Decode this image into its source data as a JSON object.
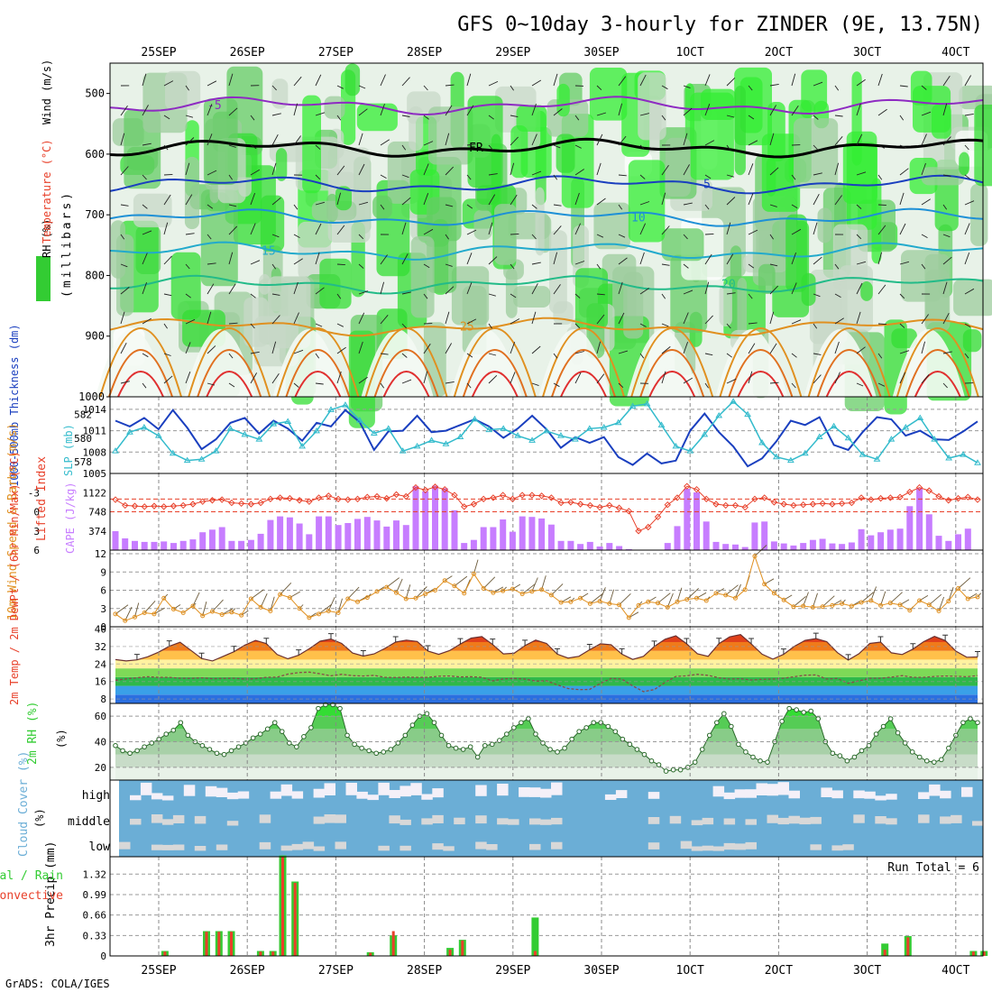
{
  "title": "GFS 0~10day 3-hourly for ZINDER (9E, 13.75N)",
  "footer": "GrADS: COLA/IGES",
  "dates": [
    "25SEP",
    "26SEP",
    "27SEP",
    "28SEP",
    "29SEP",
    "30SEP",
    "1OCT",
    "2OCT",
    "3OCT",
    "4OCT"
  ],
  "colors": {
    "grid": "#888888",
    "axis": "#000000",
    "rh_green": "#33cc33",
    "cloud_blue": "#6baed6",
    "cape": "#c77dff",
    "precip_total": "#33cc33",
    "precip_conv": "#e8402a",
    "slp": "#1a3fbf",
    "thickness": "#33bbcc"
  },
  "chart_data": [
    {
      "type": "area",
      "panel": "upper-air",
      "title": "RH (%) / Temperature (°C) / Wind (m/s)",
      "ylabels": [
        "RH (%)",
        "Temperature (°C)",
        "Wind (m/s)"
      ],
      "yaxis_title": "(millibars)",
      "ylim": [
        1000,
        450
      ],
      "yticks": [
        500,
        600,
        700,
        800,
        900,
        1000
      ],
      "isotherms": [
        {
          "value": -5,
          "label": "-5",
          "pressure": 520,
          "color": "#8e2bc2"
        },
        {
          "value": 0,
          "label": "FR",
          "pressure": 590,
          "color": "#000000"
        },
        {
          "value": 5,
          "label": "5",
          "pressure": 650,
          "color": "#1a3fbf"
        },
        {
          "value": 10,
          "label": "10",
          "pressure": 705,
          "color": "#1e90d6"
        },
        {
          "value": 15,
          "label": "15",
          "pressure": 760,
          "color": "#22aacc"
        },
        {
          "value": 20,
          "label": "20",
          "pressure": 815,
          "color": "#22bb88"
        },
        {
          "value": 25,
          "label": "25",
          "pressure": 885,
          "color": "#e09020"
        }
      ]
    },
    {
      "type": "line",
      "panel": "slp-thickness",
      "ylabel_left": "1000-500mb Thickness (dm)",
      "ylabel_right": "SLP (mb)",
      "left_ticks": [
        578,
        580,
        582
      ],
      "right_ticks": [
        1005,
        1008,
        1011,
        1014
      ],
      "left_lim": [
        577,
        583.5
      ],
      "right_lim": [
        1005,
        1015
      ],
      "series": [
        {
          "name": "SLP",
          "axis": "right",
          "values": [
            1012.4,
            1011.6,
            1012.8,
            1011.2,
            1013.9,
            1011.4,
            1008.4,
            1009.8,
            1012.1,
            1012.8,
            1010.6,
            1012.4,
            1011.3,
            1009.6,
            1012.1,
            1011.6,
            1013.9,
            1012.2,
            1008.3,
            1010.9,
            1011.0,
            1013.1,
            1010.8,
            1011.0,
            1011.8,
            1012.6,
            1011.6,
            1010.0,
            1011.3,
            1013.1,
            1011.2,
            1008.6,
            1010.1,
            1009.3,
            1010.1,
            1007.3,
            1006.2,
            1007.8,
            1006.4,
            1006.8,
            1011.0,
            1013.4,
            1010.8,
            1008.8,
            1006.0,
            1007.1,
            1009.5,
            1012.4,
            1011.8,
            1012.9,
            1009.0,
            1008.3,
            1010.8,
            1012.9,
            1012.6,
            1010.3,
            1011.0,
            1009.8,
            1009.7,
            1010.9,
            1012.3
          ]
        },
        {
          "name": "Thickness",
          "axis": "left",
          "values": [
            578.9,
            580.5,
            580.9,
            580.2,
            578.7,
            578.1,
            578.2,
            578.9,
            580.8,
            580.3,
            579.9,
            581.2,
            581.4,
            579.3,
            580.6,
            582.4,
            582.8,
            581.5,
            580.4,
            580.8,
            578.9,
            579.3,
            579.8,
            579.5,
            580.1,
            581.6,
            580.7,
            580.8,
            580.2,
            579.8,
            580.6,
            580.2,
            579.9,
            580.8,
            580.9,
            581.3,
            582.7,
            582.9,
            581.1,
            579.3,
            578.9,
            580.3,
            581.9,
            583.1,
            582.0,
            579.6,
            578.4,
            578.1,
            578.7,
            580.1,
            581.0,
            580.0,
            578.6,
            578.2,
            579.9,
            580.9,
            581.7,
            579.9,
            578.3,
            578.6,
            577.9
          ]
        }
      ]
    },
    {
      "type": "bar",
      "panel": "cape-lifted-index",
      "ylabel_left": "Lifted Index",
      "ylabel_right": "CAPE (J/kg)",
      "li_ticks": [
        -3,
        0,
        3,
        6
      ],
      "li_lim": [
        6,
        -6
      ],
      "cape_ticks": [
        374,
        748,
        1122
      ],
      "cape_lim": [
        0,
        1500
      ],
      "cape_values": [
        370,
        230,
        180,
        160,
        160,
        170,
        140,
        180,
        210,
        350,
        400,
        450,
        180,
        180,
        200,
        320,
        590,
        660,
        640,
        520,
        310,
        660,
        660,
        490,
        530,
        610,
        650,
        580,
        460,
        580,
        490,
        1250,
        1150,
        1260,
        1210,
        780,
        140,
        200,
        450,
        450,
        600,
        360,
        660,
        650,
        620,
        500,
        180,
        180,
        120,
        160,
        70,
        140,
        80,
        20,
        0,
        0,
        0,
        140,
        470,
        1200,
        1130,
        560,
        160,
        120,
        110,
        60,
        540,
        560,
        170,
        130,
        90,
        140,
        200,
        220,
        130,
        120,
        150,
        410,
        290,
        350,
        400,
        420,
        860,
        1210,
        700,
        280,
        180,
        310,
        420,
        0
      ],
      "li_values": [
        -1.9,
        -1.0,
        -0.9,
        -0.8,
        -0.9,
        -0.8,
        -0.9,
        -1.0,
        -1.2,
        -1.6,
        -1.8,
        -1.9,
        -1.4,
        -1.3,
        -1.2,
        -1.4,
        -2.0,
        -2.2,
        -2.1,
        -1.8,
        -1.6,
        -2.2,
        -2.5,
        -2.0,
        -1.9,
        -2.0,
        -2.3,
        -2.4,
        -2.1,
        -2.7,
        -2.4,
        -3.8,
        -3.4,
        -3.9,
        -3.5,
        -2.6,
        -0.8,
        -1.2,
        -2.0,
        -2.2,
        -2.6,
        -2.0,
        -2.6,
        -2.6,
        -2.5,
        -2.2,
        -1.4,
        -1.5,
        -1.2,
        -1.0,
        -0.7,
        -1.0,
        -0.6,
        -0.1,
        3.0,
        2.4,
        0.8,
        -1.1,
        -2.2,
        -4.0,
        -3.5,
        -2.0,
        -1.2,
        -1.0,
        -1.0,
        -0.7,
        -2.0,
        -2.2,
        -1.5,
        -1.2,
        -1.0,
        -1.1,
        -1.2,
        -1.3,
        -1.2,
        -1.3,
        -1.4,
        -2.2,
        -1.9,
        -2.1,
        -2.2,
        -2.3,
        -3.1,
        -3.8,
        -3.3,
        -2.4,
        -1.8,
        -2.1,
        -2.3,
        -1.9
      ]
    },
    {
      "type": "line",
      "panel": "10m-wind",
      "ylabel": "10m Wind Speed & Barbs (m/s)",
      "yticks": [
        0,
        3,
        6,
        9,
        12
      ],
      "ylim": [
        0,
        12
      ],
      "series": [
        {
          "name": "Speed",
          "values": [
            2.1,
            1.0,
            1.6,
            2.3,
            2.1,
            4.7,
            2.9,
            2.3,
            3.4,
            1.8,
            2.5,
            2.0,
            2.4,
            1.9,
            4.6,
            3.2,
            2.6,
            5.3,
            4.8,
            3.0,
            1.5,
            2.1,
            2.6,
            2.3,
            4.6,
            4.1,
            4.8,
            5.8,
            6.5,
            5.6,
            4.6,
            4.7,
            5.4,
            6.0,
            7.6,
            6.7,
            5.5,
            8.7,
            6.3,
            5.6,
            5.9,
            6.2,
            5.4,
            5.8,
            6.1,
            5.2,
            4.0,
            4.1,
            4.7,
            3.8,
            4.2,
            3.8,
            3.6,
            1.5,
            3.5,
            4.1,
            3.9,
            3.2,
            4.1,
            4.5,
            4.7,
            4.3,
            5.5,
            5.2,
            4.7,
            6.1,
            11.6,
            7.0,
            5.5,
            4.4,
            3.3,
            3.4,
            3.2,
            3.3,
            3.5,
            3.8,
            3.4,
            4.0,
            4.3,
            3.5,
            3.9,
            3.6,
            2.7,
            4.3,
            3.6,
            2.6,
            4.2,
            6.3,
            4.6,
            4.9
          ]
        }
      ]
    },
    {
      "type": "area",
      "panel": "2m-temperature",
      "ylabel": "2m Temp / 2m DewPt / (6hr Min/Max) (°C)",
      "yticks": [
        8,
        16,
        24,
        32,
        40
      ],
      "ylim": [
        6,
        41
      ],
      "series": [
        {
          "name": "Temp",
          "values": [
            26.0,
            25.4,
            25.9,
            27.3,
            29.4,
            32.1,
            33.9,
            30.2,
            26.5,
            25.4,
            27.5,
            29.6,
            32.6,
            34.8,
            33.3,
            28.3,
            26.4,
            28.0,
            31.0,
            34.4,
            35.4,
            33.4,
            29.0,
            27.6,
            28.6,
            31.1,
            34.0,
            34.9,
            34.3,
            29.9,
            28.4,
            30.1,
            33.1,
            35.8,
            36.5,
            32.9,
            28.6,
            28.9,
            32.4,
            34.9,
            33.4,
            28.5,
            26.7,
            27.5,
            30.5,
            33.2,
            32.8,
            28.5,
            26.1,
            27.5,
            32.0,
            35.3,
            36.9,
            33.2,
            28.7,
            27.5,
            33.3,
            36.4,
            37.4,
            33.2,
            28.5,
            26.2,
            28.4,
            32.1,
            34.8,
            35.6,
            34.2,
            29.2,
            25.8,
            28.7,
            33.4,
            34.0,
            29.1,
            28.3,
            30.8,
            34.2,
            36.6,
            34.7,
            29.8,
            27.1,
            27.2
          ]
        },
        {
          "name": "DewPt",
          "values": [
            16.6,
            17.2,
            17.7,
            18.2,
            17.9,
            17.9,
            17.5,
            17.4,
            17.7,
            17.3,
            17.4,
            17.5,
            17.1,
            17.3,
            17.9,
            18.0,
            19.4,
            20.1,
            20.3,
            19.5,
            18.6,
            19.3,
            18.7,
            18.5,
            18.8,
            17.9,
            17.8,
            18.0,
            17.9,
            17.9,
            18.4,
            18.5,
            18.1,
            18.2,
            17.9,
            16.3,
            17.2,
            17.4,
            17.1,
            16.2,
            16.3,
            14.5,
            12.8,
            12.3,
            12.4,
            15.2,
            17.4,
            17.1,
            14.0,
            11.4,
            12.3,
            15.6,
            18.3,
            18.6,
            19.3,
            18.8,
            17.7,
            17.1,
            17.3,
            16.7,
            17.0,
            17.1,
            17.5,
            18.2,
            18.9,
            19.0,
            17.1,
            17.4,
            15.2,
            16.3,
            17.5,
            17.5,
            18.0,
            18.7,
            17.9,
            17.9,
            18.3,
            18.5,
            18.4,
            18.2,
            18.7
          ]
        }
      ]
    },
    {
      "type": "area",
      "panel": "2m-rh",
      "ylabel": "2m RH (%)",
      "yticks": [
        20,
        40,
        60
      ],
      "ylim": [
        10,
        70
      ],
      "series": [
        {
          "name": "RH",
          "values": [
            37,
            33,
            31,
            33,
            36,
            39,
            42,
            46,
            49,
            55,
            45,
            40,
            37,
            34,
            31,
            30,
            33,
            36,
            39,
            43,
            46,
            50,
            55,
            48,
            39,
            36,
            44,
            51,
            66,
            69,
            69,
            66,
            45,
            38,
            35,
            33,
            31,
            32,
            34,
            39,
            45,
            53,
            60,
            62,
            55,
            45,
            37,
            35,
            34,
            36,
            28,
            37,
            38,
            41,
            46,
            51,
            55,
            58,
            46,
            39,
            34,
            32,
            35,
            42,
            48,
            51,
            55,
            55,
            52,
            48,
            42,
            38,
            34,
            30,
            25,
            22,
            17,
            18,
            18,
            20,
            24,
            34,
            45,
            55,
            62,
            52,
            38,
            32,
            28,
            25,
            24,
            40,
            56,
            66,
            65,
            63,
            64,
            58,
            40,
            31,
            29,
            25,
            28,
            33,
            37,
            46,
            52,
            58,
            47,
            39,
            32,
            28,
            25,
            24,
            26,
            35,
            45,
            55,
            58,
            55
          ]
        }
      ]
    },
    {
      "type": "heatmap",
      "panel": "cloud-cover",
      "ylabel": "Cloud Cover (%)",
      "rows": [
        "high",
        "middle",
        "low"
      ]
    },
    {
      "type": "bar",
      "panel": "precip",
      "ylabel": "3hr Precip (mm)",
      "legend": [
        "Total / Rain",
        "Convective"
      ],
      "annotation": "Run Total = 6",
      "yticks": [
        "0",
        "0.33",
        "0.66",
        "0.99",
        "1.32"
      ],
      "ylim": [
        0,
        1.6
      ],
      "bars": [
        {
          "x": 0.57,
          "total": 0.08,
          "conv": 0.07
        },
        {
          "x": 1.04,
          "total": 0.4,
          "conv": 0.39
        },
        {
          "x": 1.18,
          "total": 0.4,
          "conv": 0.39
        },
        {
          "x": 1.32,
          "total": 0.4,
          "conv": 0.39
        },
        {
          "x": 1.65,
          "total": 0.08,
          "conv": 0.07
        },
        {
          "x": 1.79,
          "total": 0.08,
          "conv": 0.07
        },
        {
          "x": 1.9,
          "total": 1.62,
          "conv": 1.6
        },
        {
          "x": 2.04,
          "total": 1.2,
          "conv": 1.18
        },
        {
          "x": 2.89,
          "total": 0.06,
          "conv": 0.05
        },
        {
          "x": 3.15,
          "total": 0.33,
          "conv": 0.4
        },
        {
          "x": 3.79,
          "total": 0.13,
          "conv": 0.1
        },
        {
          "x": 3.93,
          "total": 0.26,
          "conv": 0.25
        },
        {
          "x": 4.75,
          "total": 0.62,
          "conv": 0.08
        },
        {
          "x": 8.7,
          "total": 0.2,
          "conv": 0.1
        },
        {
          "x": 8.96,
          "total": 0.32,
          "conv": 0.3
        },
        {
          "x": 9.7,
          "total": 0.08,
          "conv": 0.07
        },
        {
          "x": 9.82,
          "total": 0.08,
          "conv": 0.07
        },
        {
          "x": 10.1,
          "total": 0.08,
          "conv": 0.0
        }
      ]
    }
  ]
}
